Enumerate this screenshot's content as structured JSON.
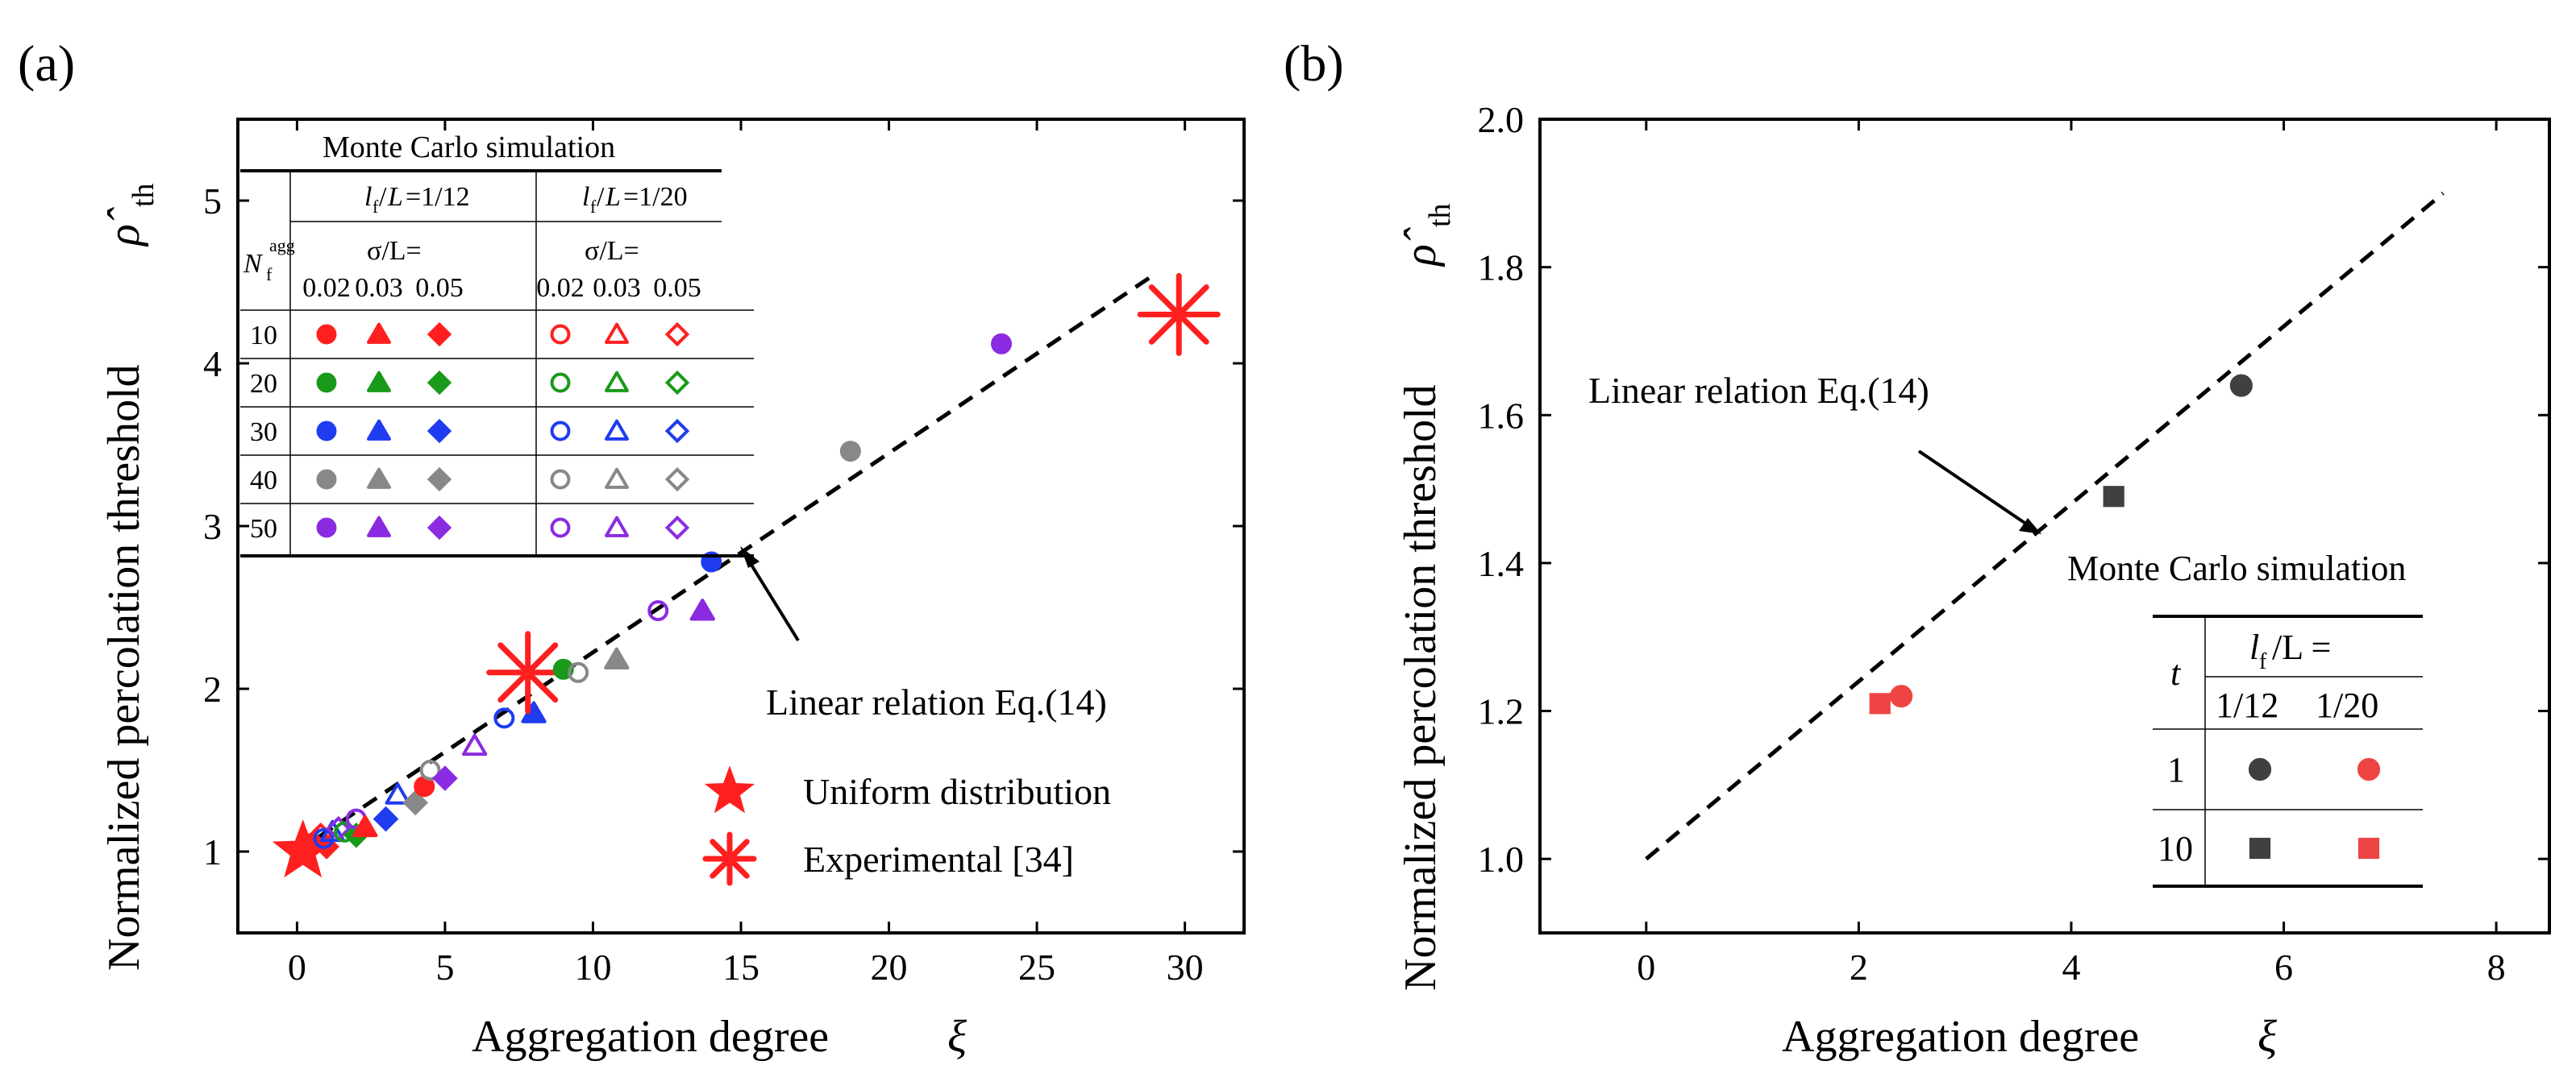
{
  "colors": {
    "red": "#ff1f1f",
    "green": "#1a9a1a",
    "blue": "#1f3cf0",
    "gray": "#888888",
    "purple": "#8a2be2",
    "dark": "#404040",
    "lightred": "#ee4444",
    "fit": "#000000"
  },
  "chart_data": [
    {
      "panel": "(a)",
      "type": "scatter",
      "xlabel": "Aggregation degree",
      "xlabel_symbol": "ξ",
      "ylabel": "Normalized percolation threshold",
      "ylabel_symbol": "ρ̂",
      "ylabel_sub": "th",
      "xlim": [
        -2,
        32
      ],
      "ylim": [
        0.5,
        5.5
      ],
      "xticks": [
        0,
        5,
        10,
        15,
        20,
        25,
        30
      ],
      "yticks": [
        1,
        2,
        3,
        4,
        5
      ],
      "fit_line": {
        "label": "Linear relation Eq.(14)",
        "x": [
          0,
          29
        ],
        "y": [
          1.0,
          4.55
        ]
      },
      "table": {
        "title": "Monte Carlo simulation",
        "row_header_main": "N",
        "row_header_sup": "agg",
        "row_header_sub": "f",
        "col_groups": [
          {
            "l": "l",
            "l_sub": "f",
            "eq": "/",
            "L": "L",
            "value": "=1/12"
          },
          {
            "l": "l",
            "l_sub": "f",
            "eq": "/",
            "L": "L",
            "value": "=1/20"
          }
        ],
        "sigma_label": "σ/L=",
        "sigma_values": [
          "0.02",
          "0.03",
          "0.05",
          "0.02",
          "0.03",
          "0.05"
        ],
        "rows": [
          "10",
          "20",
          "30",
          "40",
          "50"
        ],
        "row_colors": [
          "red",
          "green",
          "blue",
          "gray",
          "purple"
        ]
      },
      "points": [
        {
          "x": 0.2,
          "y": 1.0,
          "m": "star",
          "c": "red",
          "f": true,
          "s": 1.6
        },
        {
          "x": 0.5,
          "y": 1.05,
          "m": "circle",
          "c": "red",
          "f": true
        },
        {
          "x": 0.8,
          "y": 1.1,
          "m": "diamond",
          "c": "red",
          "f": false
        },
        {
          "x": 1.0,
          "y": 1.03,
          "m": "diamond",
          "c": "red",
          "f": true
        },
        {
          "x": 0.9,
          "y": 1.08,
          "m": "circle",
          "c": "blue",
          "f": false
        },
        {
          "x": 1.2,
          "y": 1.12,
          "m": "triangle",
          "c": "blue",
          "f": false
        },
        {
          "x": 1.4,
          "y": 1.14,
          "m": "diamond",
          "c": "purple",
          "f": false
        },
        {
          "x": 1.6,
          "y": 1.12,
          "m": "circle",
          "c": "green",
          "f": false
        },
        {
          "x": 2.0,
          "y": 1.1,
          "m": "diamond",
          "c": "green",
          "f": true
        },
        {
          "x": 2.0,
          "y": 1.2,
          "m": "circle",
          "c": "purple",
          "f": false
        },
        {
          "x": 2.3,
          "y": 1.15,
          "m": "triangle",
          "c": "red",
          "f": true
        },
        {
          "x": 3.0,
          "y": 1.2,
          "m": "diamond",
          "c": "blue",
          "f": true
        },
        {
          "x": 3.4,
          "y": 1.35,
          "m": "triangle",
          "c": "blue",
          "f": false
        },
        {
          "x": 4.0,
          "y": 1.3,
          "m": "diamond",
          "c": "gray",
          "f": true
        },
        {
          "x": 4.3,
          "y": 1.4,
          "m": "circle",
          "c": "red",
          "f": true
        },
        {
          "x": 4.5,
          "y": 1.5,
          "m": "circle",
          "c": "gray",
          "f": false
        },
        {
          "x": 5.0,
          "y": 1.45,
          "m": "diamond",
          "c": "purple",
          "f": true
        },
        {
          "x": 6.0,
          "y": 1.65,
          "m": "triangle",
          "c": "purple",
          "f": false
        },
        {
          "x": 7.0,
          "y": 1.82,
          "m": "circle",
          "c": "blue",
          "f": false
        },
        {
          "x": 8.0,
          "y": 1.85,
          "m": "triangle",
          "c": "blue",
          "f": true
        },
        {
          "x": 7.8,
          "y": 2.1,
          "m": "asterisk",
          "c": "red",
          "f": true,
          "s": 1.6
        },
        {
          "x": 9.0,
          "y": 2.12,
          "m": "circle",
          "c": "green",
          "f": true
        },
        {
          "x": 9.5,
          "y": 2.1,
          "m": "circle",
          "c": "gray",
          "f": false
        },
        {
          "x": 10.8,
          "y": 2.18,
          "m": "triangle",
          "c": "gray",
          "f": true
        },
        {
          "x": 12.2,
          "y": 2.48,
          "m": "circle",
          "c": "purple",
          "f": false
        },
        {
          "x": 13.7,
          "y": 2.48,
          "m": "triangle",
          "c": "purple",
          "f": true
        },
        {
          "x": 14.0,
          "y": 2.78,
          "m": "circle",
          "c": "blue",
          "f": true
        },
        {
          "x": 18.7,
          "y": 3.46,
          "m": "circle",
          "c": "gray",
          "f": true
        },
        {
          "x": 23.8,
          "y": 4.12,
          "m": "circle",
          "c": "purple",
          "f": true
        },
        {
          "x": 29.8,
          "y": 4.3,
          "m": "asterisk",
          "c": "red",
          "f": true,
          "s": 1.6
        }
      ],
      "legend": [
        {
          "label": "Uniform distribution",
          "m": "star",
          "c": "red"
        },
        {
          "label": "Experimental [34]",
          "m": "asterisk",
          "c": "red"
        }
      ],
      "annotation": "Linear relation Eq.(14)"
    },
    {
      "panel": "(b)",
      "type": "scatter",
      "xlabel": "Aggregation degree",
      "xlabel_symbol": "ξ",
      "ylabel": "Normalized percolation threshold",
      "ylabel_symbol": "ρ̂",
      "ylabel_sub": "th",
      "xlim": [
        -1,
        8.5
      ],
      "ylim": [
        0.9,
        2.0
      ],
      "xticks": [
        0,
        2,
        4,
        6,
        8
      ],
      "yticks": [
        "1.0",
        "1.2",
        "1.4",
        "1.6",
        "1.8",
        "2.0"
      ],
      "fit_line": {
        "label": "Linear relation Eq.(14)",
        "x": [
          0,
          7.5
        ],
        "y": [
          1.0,
          1.9
        ]
      },
      "points": [
        {
          "x": 2.2,
          "y": 1.21,
          "m": "square",
          "c": "lightred",
          "f": true
        },
        {
          "x": 2.4,
          "y": 1.22,
          "m": "circle",
          "c": "lightred",
          "f": true
        },
        {
          "x": 4.4,
          "y": 1.49,
          "m": "square",
          "c": "dark",
          "f": true
        },
        {
          "x": 5.6,
          "y": 1.64,
          "m": "circle",
          "c": "dark",
          "f": true
        }
      ],
      "table": {
        "title": "Monte Carlo simulation",
        "row_header": "t",
        "col_header_prefix": "l",
        "col_header_sub": "f",
        "col_header_suffix": "/L =",
        "cols": [
          "1/12",
          "1/20"
        ],
        "rows": [
          "1",
          "10"
        ]
      },
      "annotation": "Linear relation Eq.(14)"
    }
  ]
}
